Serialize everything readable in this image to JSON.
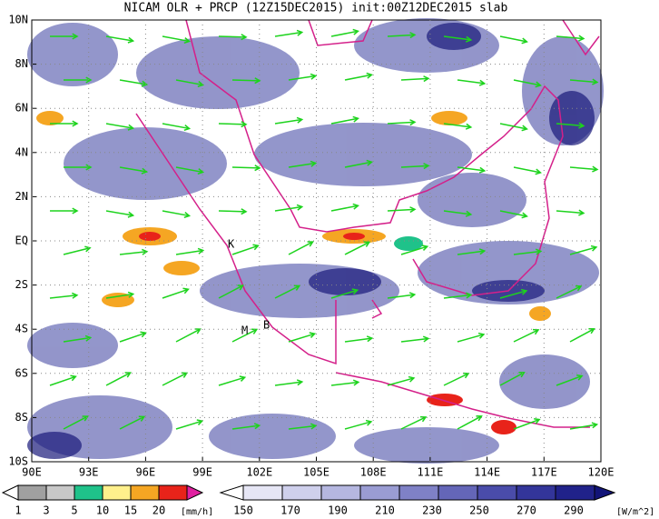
{
  "header": {
    "title": "NICAM OLR + PRCP (12Z15DEC2015) init:00Z12DEC2015 slab"
  },
  "map": {
    "x_labels": [
      "90E",
      "93E",
      "96E",
      "99E",
      "102E",
      "105E",
      "108E",
      "111E",
      "114E",
      "117E",
      "120E"
    ],
    "y_labels": [
      "10N",
      "8N",
      "6N",
      "4N",
      "2N",
      "EQ",
      "2S",
      "4S",
      "6S",
      "8S",
      "10S"
    ],
    "places": [
      "K",
      "M",
      "B"
    ]
  },
  "precip_legend": {
    "labels": [
      "1",
      "3",
      "5",
      "10",
      "15",
      "20"
    ],
    "unit": "[mm/h]"
  },
  "olr_legend": {
    "labels": [
      "150",
      "170",
      "190",
      "210",
      "230",
      "250",
      "270",
      "290"
    ],
    "unit": "[W/m^2]"
  }
}
